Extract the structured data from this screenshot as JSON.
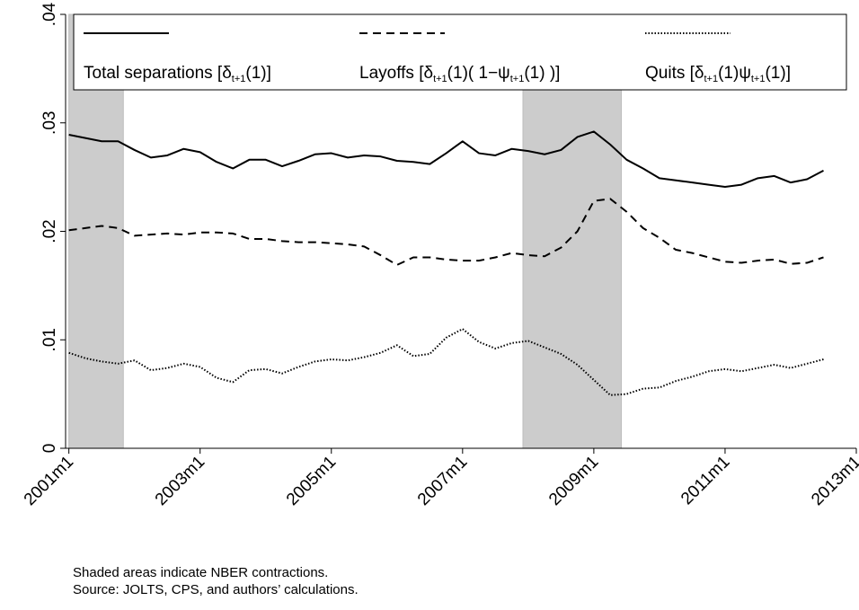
{
  "chart_data": {
    "type": "line",
    "x": [
      2001,
      2001.25,
      2001.5,
      2001.75,
      2002,
      2002.25,
      2002.5,
      2002.75,
      2003,
      2003.25,
      2003.5,
      2003.75,
      2004,
      2004.25,
      2004.5,
      2004.75,
      2005,
      2005.25,
      2005.5,
      2005.75,
      2006,
      2006.25,
      2006.5,
      2006.75,
      2007,
      2007.25,
      2007.5,
      2007.75,
      2008,
      2008.25,
      2008.5,
      2008.75,
      2009,
      2009.25,
      2009.5,
      2009.75,
      2010,
      2010.25,
      2010.5,
      2010.75,
      2011,
      2011.25,
      2011.5,
      2011.75,
      2012,
      2012.25,
      2012.5
    ],
    "series": [
      {
        "name": [
          {
            "text": "Total separations [δ"
          },
          {
            "text": "t+1",
            "sub": true
          },
          {
            "text": "(1)]"
          }
        ],
        "color": "#000000",
        "dash": "solid",
        "values": [
          0.0289,
          0.0286,
          0.0283,
          0.0283,
          0.0275,
          0.0268,
          0.027,
          0.0276,
          0.0273,
          0.0264,
          0.0258,
          0.0266,
          0.0266,
          0.026,
          0.0265,
          0.0271,
          0.0272,
          0.0268,
          0.027,
          0.0269,
          0.0265,
          0.0264,
          0.0262,
          0.0272,
          0.0283,
          0.0272,
          0.027,
          0.0276,
          0.0274,
          0.0271,
          0.0275,
          0.0287,
          0.0292,
          0.028,
          0.0266,
          0.0258,
          0.0249,
          0.0247,
          0.0245,
          0.0243,
          0.0241,
          0.0243,
          0.0249,
          0.0251,
          0.0245,
          0.0248,
          0.0256
        ]
      },
      {
        "name": [
          {
            "text": "Layoffs [δ"
          },
          {
            "text": "t+1",
            "sub": true
          },
          {
            "text": "(1)( 1−ψ"
          },
          {
            "text": "t+1",
            "sub": true
          },
          {
            "text": "(1) )]"
          }
        ],
        "color": "#000000",
        "dash": "dashed",
        "values": [
          0.0201,
          0.0203,
          0.0205,
          0.0203,
          0.0196,
          0.0197,
          0.0198,
          0.0197,
          0.0199,
          0.0199,
          0.0198,
          0.0193,
          0.0193,
          0.0191,
          0.019,
          0.019,
          0.0189,
          0.0188,
          0.0186,
          0.0178,
          0.0169,
          0.0176,
          0.0176,
          0.0174,
          0.0173,
          0.0173,
          0.0176,
          0.018,
          0.0178,
          0.0177,
          0.0185,
          0.02,
          0.0228,
          0.023,
          0.0218,
          0.0203,
          0.0194,
          0.0183,
          0.018,
          0.0176,
          0.0172,
          0.0171,
          0.0173,
          0.0174,
          0.017,
          0.0171,
          0.0176
        ]
      },
      {
        "name": [
          {
            "text": "Quits [δ"
          },
          {
            "text": "t+1",
            "sub": true
          },
          {
            "text": "(1)ψ"
          },
          {
            "text": "t+1",
            "sub": true
          },
          {
            "text": "(1)]"
          }
        ],
        "color": "#000000",
        "dash": "dotted",
        "values": [
          0.0088,
          0.0083,
          0.008,
          0.0078,
          0.0081,
          0.0072,
          0.0074,
          0.0078,
          0.0075,
          0.0065,
          0.0061,
          0.0072,
          0.0073,
          0.0069,
          0.0075,
          0.008,
          0.0082,
          0.0081,
          0.0084,
          0.0088,
          0.0095,
          0.0085,
          0.0087,
          0.0102,
          0.011,
          0.0098,
          0.0092,
          0.0097,
          0.0099,
          0.0093,
          0.0087,
          0.0077,
          0.0063,
          0.0049,
          0.005,
          0.0055,
          0.0056,
          0.0062,
          0.0066,
          0.0071,
          0.0073,
          0.0071,
          0.0074,
          0.0077,
          0.0074,
          0.0078,
          0.0082
        ]
      }
    ],
    "shaded": [
      {
        "start": 2001.0,
        "end": 2001.83
      },
      {
        "start": 2007.92,
        "end": 2009.42
      }
    ],
    "xlim": [
      2000.95,
      2013
    ],
    "xticks": [
      {
        "value": 2001,
        "label": "2001m1"
      },
      {
        "value": 2003,
        "label": "2003m1"
      },
      {
        "value": 2005,
        "label": "2005m1"
      },
      {
        "value": 2007,
        "label": "2007m1"
      },
      {
        "value": 2009,
        "label": "2009m1"
      },
      {
        "value": 2011,
        "label": "2011m1"
      },
      {
        "value": 2013,
        "label": "2013m1"
      }
    ],
    "ylim": [
      0,
      0.04
    ],
    "yticks": [
      0,
      {
        "value": 0.01,
        "label": ".01"
      },
      {
        "value": 0.02,
        "label": ".02"
      },
      {
        "value": 0.03,
        "label": ".03"
      },
      {
        "value": 0.04,
        "label": ".04"
      }
    ],
    "notes": [
      "Shaded areas indicate NBER contractions.",
      "Source: JOLTS, CPS, and authors’ calculations."
    ]
  }
}
